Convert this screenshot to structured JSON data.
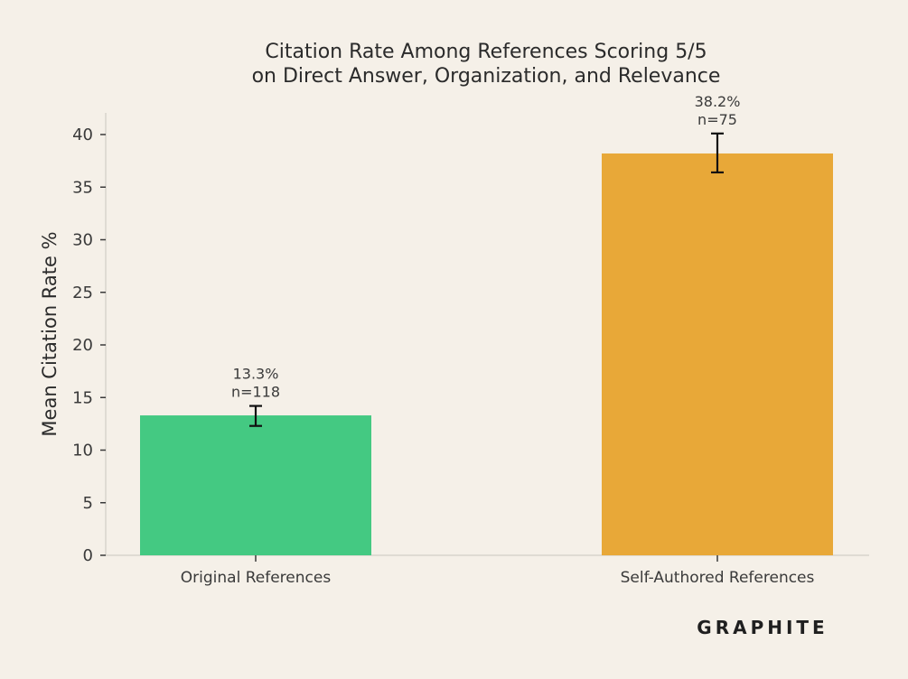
{
  "chart_data": {
    "type": "bar",
    "title": [
      "Citation Rate Among References Scoring 5/5",
      "on Direct Answer, Organization, and Relevance"
    ],
    "xlabel": "",
    "ylabel": "Mean Citation Rate %",
    "ylim": [
      0,
      42
    ],
    "yticks": [
      0,
      5,
      10,
      15,
      20,
      25,
      30,
      35,
      40
    ],
    "grid": false,
    "categories": [
      "Original References",
      "Self-Authored References"
    ],
    "values": [
      13.3,
      38.2
    ],
    "error_low": [
      12.3,
      36.4
    ],
    "error_high": [
      14.2,
      40.1
    ],
    "value_labels": [
      "13.3%",
      "38.2%"
    ],
    "n_labels": [
      "n=118",
      "n=75"
    ],
    "colors": [
      "#44c982",
      "#e8a838"
    ]
  },
  "brand": {
    "name": "GRAPHITE"
  }
}
